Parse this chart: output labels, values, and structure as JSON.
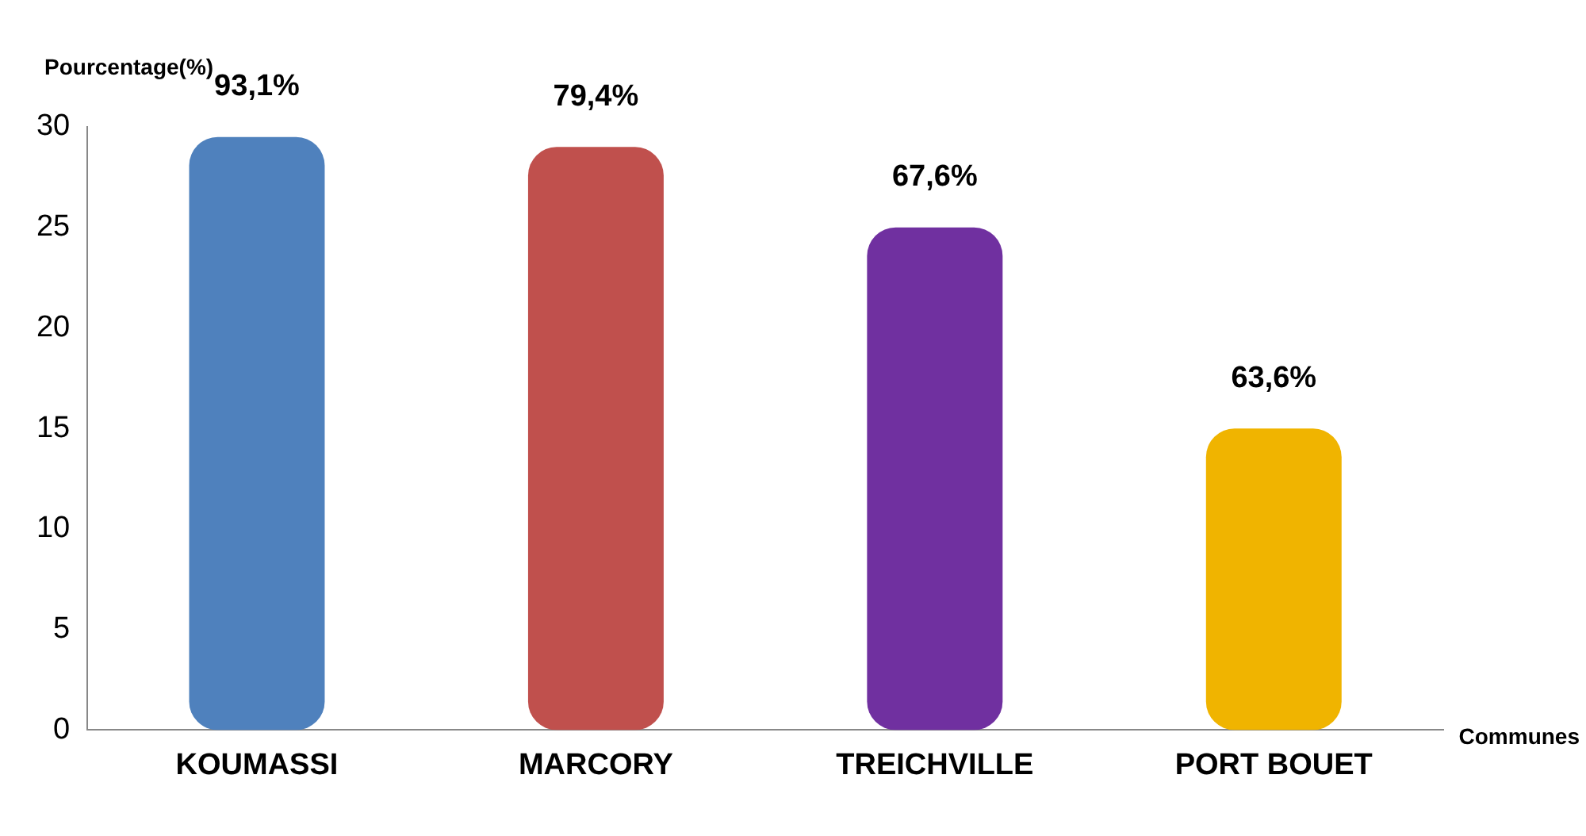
{
  "chart_data": {
    "type": "bar",
    "categories": [
      "KOUMASSI",
      "MARCORY",
      "TREICHVILLE",
      "PORT BOUET"
    ],
    "values": [
      29.5,
      29,
      25,
      15
    ],
    "colors": [
      "#4f81bd",
      "#c0504d",
      "#7030a0",
      "#f0b400"
    ],
    "ylim": [
      0,
      30
    ],
    "yticks": [
      0,
      5,
      10,
      15,
      20,
      25,
      30
    ],
    "grid": false,
    "legend": false,
    "ylabel": "Pourcentage(%)",
    "xlabel": "Communes",
    "annotations": [
      {
        "text": "93,1%",
        "x": "KOUMASSI",
        "y": 29.5
      },
      {
        "text": "79,4%",
        "x": "MARCORY",
        "y": 29
      },
      {
        "text": "67,6%",
        "x": "TREICHVILLE",
        "y": 25
      },
      {
        "text": "63,6%",
        "x": "PORT BOUET",
        "y": 15
      }
    ]
  }
}
